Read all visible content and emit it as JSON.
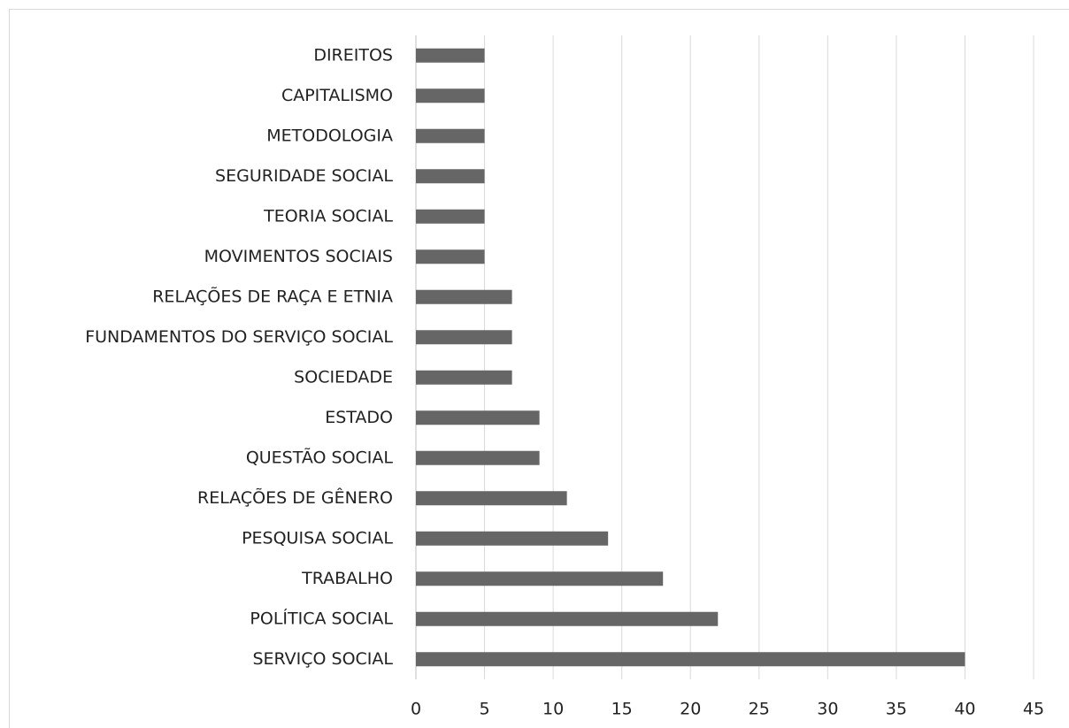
{
  "chart_data": {
    "type": "barh",
    "categories": [
      "DIREITOS",
      "CAPITALISMO",
      "METODOLOGIA",
      "SEGURIDADE SOCIAL",
      "TEORIA SOCIAL",
      "MOVIMENTOS SOCIAIS",
      "RELAÇÕES DE RAÇA E ETNIA",
      "FUNDAMENTOS DO SERVIÇO SOCIAL",
      "SOCIEDADE",
      "ESTADO",
      "QUESTÃO SOCIAL",
      "RELAÇÕES DE GÊNERO",
      "PESQUISA SOCIAL",
      "TRABALHO",
      "POLÍTICA SOCIAL",
      "SERVIÇO SOCIAL"
    ],
    "values": [
      5,
      5,
      5,
      5,
      5,
      5,
      7,
      7,
      7,
      9,
      9,
      11,
      14,
      18,
      22,
      40
    ],
    "color": "#666666",
    "xlim": [
      0,
      45
    ],
    "xticks": [
      0,
      5,
      10,
      15,
      20,
      25,
      30,
      35,
      40,
      45
    ],
    "grid": true
  }
}
